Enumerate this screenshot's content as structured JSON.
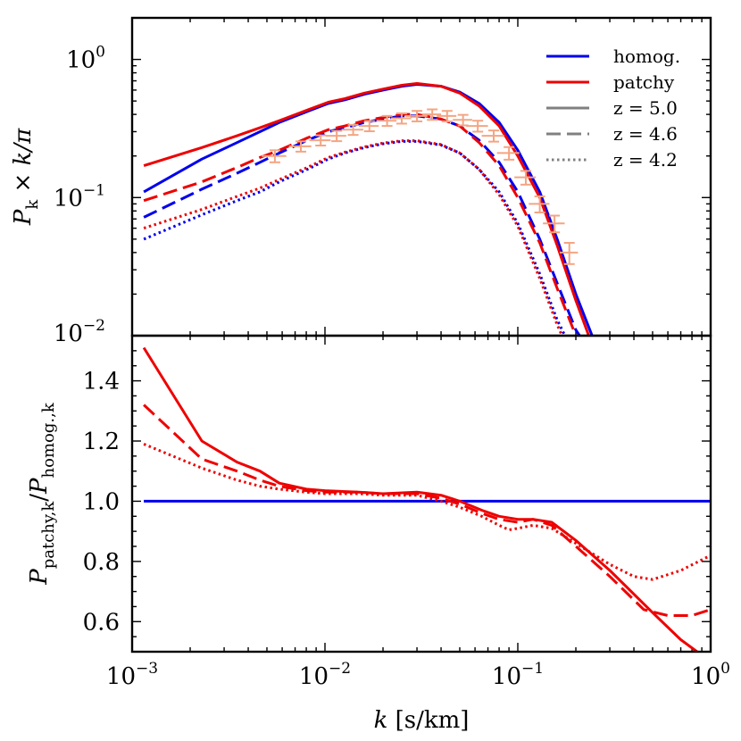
{
  "chart_data": [
    {
      "panel": "top",
      "type": "line",
      "xscale": "log",
      "yscale": "log",
      "xlim": [
        0.001,
        1
      ],
      "ylim": [
        0.01,
        2
      ],
      "yticks": [
        {
          "base": "10",
          "exp": "0",
          "value": 1
        },
        {
          "base": "10",
          "exp": "−1",
          "value": 0.1
        },
        {
          "base": "10",
          "exp": "−2",
          "value": 0.01
        }
      ],
      "ylabel": {
        "main": "P",
        "sub": "k",
        "rest": " × k/π"
      },
      "legend": {
        "position": "top-right",
        "entries": [
          {
            "label": "homog.",
            "color": "#0000ee",
            "dash": "solid"
          },
          {
            "label": "patchy",
            "color": "#ee0000",
            "dash": "solid"
          },
          {
            "label": "z = 5.0",
            "color": "#808080",
            "dash": "solid"
          },
          {
            "label": "z = 4.6",
            "color": "#808080",
            "dash": "dashed"
          },
          {
            "label": "z = 4.2",
            "color": "#808080",
            "dash": "dotted"
          }
        ]
      },
      "series": [
        {
          "name": "homog. z=5.0",
          "color": "#0000ee",
          "dash": "solid",
          "x": [
            0.00115,
            0.0023,
            0.0035,
            0.0046,
            0.0058,
            0.0081,
            0.0104,
            0.0127,
            0.016,
            0.02,
            0.025,
            0.03,
            0.04,
            0.05,
            0.063,
            0.08,
            0.1,
            0.13,
            0.16,
            0.2,
            0.25
          ],
          "y": [
            0.11,
            0.19,
            0.25,
            0.3,
            0.35,
            0.42,
            0.48,
            0.51,
            0.56,
            0.6,
            0.64,
            0.66,
            0.64,
            0.58,
            0.48,
            0.35,
            0.22,
            0.11,
            0.05,
            0.02,
            0.009
          ]
        },
        {
          "name": "patchy z=5.0",
          "color": "#ee0000",
          "dash": "solid",
          "x": [
            0.00115,
            0.0023,
            0.0035,
            0.0046,
            0.0058,
            0.0081,
            0.0104,
            0.0127,
            0.016,
            0.02,
            0.025,
            0.03,
            0.04,
            0.05,
            0.063,
            0.08,
            0.1,
            0.13,
            0.16,
            0.2,
            0.24
          ],
          "y": [
            0.17,
            0.23,
            0.28,
            0.32,
            0.36,
            0.43,
            0.49,
            0.52,
            0.57,
            0.61,
            0.65,
            0.67,
            0.64,
            0.57,
            0.46,
            0.33,
            0.2,
            0.1,
            0.045,
            0.018,
            0.009
          ]
        },
        {
          "name": "homog. z=4.6",
          "color": "#0000ee",
          "dash": "dashed",
          "x": [
            0.00115,
            0.0023,
            0.0035,
            0.0046,
            0.0058,
            0.0081,
            0.0104,
            0.0127,
            0.016,
            0.02,
            0.025,
            0.03,
            0.04,
            0.05,
            0.063,
            0.08,
            0.1,
            0.13,
            0.16,
            0.2,
            0.22
          ],
          "y": [
            0.072,
            0.115,
            0.15,
            0.18,
            0.21,
            0.26,
            0.3,
            0.32,
            0.35,
            0.37,
            0.39,
            0.39,
            0.37,
            0.33,
            0.26,
            0.18,
            0.11,
            0.05,
            0.024,
            0.011,
            0.009
          ]
        },
        {
          "name": "patchy z=4.6",
          "color": "#ee0000",
          "dash": "dashed",
          "x": [
            0.00115,
            0.0023,
            0.0035,
            0.0046,
            0.0058,
            0.0081,
            0.0104,
            0.0127,
            0.016,
            0.02,
            0.025,
            0.03,
            0.04,
            0.05,
            0.063,
            0.08,
            0.1,
            0.13,
            0.16,
            0.2,
            0.22
          ],
          "y": [
            0.095,
            0.13,
            0.165,
            0.195,
            0.22,
            0.27,
            0.31,
            0.33,
            0.36,
            0.38,
            0.4,
            0.4,
            0.37,
            0.33,
            0.25,
            0.17,
            0.1,
            0.047,
            0.022,
            0.01,
            0.008
          ]
        },
        {
          "name": "homog. z=4.2",
          "color": "#0000ee",
          "dash": "dotted",
          "x": [
            0.00115,
            0.0023,
            0.0035,
            0.0046,
            0.0058,
            0.0081,
            0.0104,
            0.0127,
            0.016,
            0.02,
            0.025,
            0.03,
            0.04,
            0.05,
            0.063,
            0.08,
            0.1,
            0.13,
            0.16,
            0.19
          ],
          "y": [
            0.05,
            0.075,
            0.095,
            0.11,
            0.13,
            0.16,
            0.19,
            0.21,
            0.23,
            0.245,
            0.255,
            0.255,
            0.24,
            0.21,
            0.16,
            0.11,
            0.065,
            0.028,
            0.013,
            0.008
          ]
        },
        {
          "name": "patchy z=4.2",
          "color": "#ee0000",
          "dash": "dotted",
          "x": [
            0.00115,
            0.0023,
            0.0035,
            0.0046,
            0.0058,
            0.0081,
            0.0104,
            0.0127,
            0.016,
            0.02,
            0.025,
            0.03,
            0.04,
            0.05,
            0.063,
            0.08,
            0.1,
            0.13,
            0.16,
            0.19
          ],
          "y": [
            0.06,
            0.082,
            0.102,
            0.117,
            0.135,
            0.165,
            0.195,
            0.213,
            0.233,
            0.248,
            0.258,
            0.258,
            0.242,
            0.21,
            0.16,
            0.105,
            0.062,
            0.026,
            0.012,
            0.007
          ]
        }
      ],
      "errorbars": {
        "name": "data points",
        "color": "#f4a582",
        "x": [
          0.0055,
          0.0075,
          0.0095,
          0.0115,
          0.014,
          0.017,
          0.021,
          0.025,
          0.03,
          0.036,
          0.043,
          0.052,
          0.062,
          0.075,
          0.09,
          0.11,
          0.13,
          0.155,
          0.185
        ],
        "y": [
          0.2,
          0.235,
          0.26,
          0.28,
          0.31,
          0.33,
          0.36,
          0.375,
          0.39,
          0.4,
          0.39,
          0.365,
          0.33,
          0.28,
          0.21,
          0.14,
          0.09,
          0.065,
          0.04
        ],
        "xerr": [
          0.0008,
          0.001,
          0.0012,
          0.0014,
          0.0018,
          0.002,
          0.0025,
          0.003,
          0.004,
          0.004,
          0.005,
          0.006,
          0.008,
          0.01,
          0.012,
          0.014,
          0.016,
          0.02,
          0.02
        ],
        "yerr": [
          0.02,
          0.02,
          0.022,
          0.024,
          0.026,
          0.028,
          0.03,
          0.032,
          0.034,
          0.035,
          0.034,
          0.032,
          0.03,
          0.026,
          0.022,
          0.016,
          0.012,
          0.009,
          0.007
        ]
      }
    },
    {
      "panel": "bottom",
      "type": "line",
      "xscale": "log",
      "yscale": "linear",
      "xlim": [
        0.001,
        1
      ],
      "ylim": [
        0.5,
        1.55
      ],
      "xlabel": "k [s/km]",
      "xticks": [
        {
          "base": "10",
          "exp": "−3",
          "value": 0.001
        },
        {
          "base": "10",
          "exp": "−2",
          "value": 0.01
        },
        {
          "base": "10",
          "exp": "−1",
          "value": 0.1
        },
        {
          "base": "10",
          "exp": "0",
          "value": 1
        }
      ],
      "yticks": [
        {
          "label": "0.6",
          "value": 0.6
        },
        {
          "label": "0.8",
          "value": 0.8
        },
        {
          "label": "1.0",
          "value": 1.0
        },
        {
          "label": "1.2",
          "value": 1.2
        },
        {
          "label": "1.4",
          "value": 1.4
        }
      ],
      "ylabel": {
        "main": "P",
        "sub": "patchy,k",
        "slash": "/",
        "main2": "P",
        "sub2": "homog.,k"
      },
      "series": [
        {
          "name": "homog. reference",
          "color": "#0000ee",
          "dash": "solid",
          "x": [
            0.00115,
            1
          ],
          "y": [
            1.0,
            1.0
          ]
        },
        {
          "name": "ratio z=5.0",
          "color": "#ee0000",
          "dash": "solid",
          "x": [
            0.00115,
            0.0023,
            0.0035,
            0.0046,
            0.0058,
            0.008,
            0.01,
            0.015,
            0.02,
            0.03,
            0.04,
            0.05,
            0.065,
            0.08,
            0.1,
            0.12,
            0.15,
            0.2,
            0.3,
            0.5,
            0.7,
            0.85
          ],
          "y": [
            1.51,
            1.2,
            1.13,
            1.1,
            1.06,
            1.04,
            1.035,
            1.03,
            1.025,
            1.03,
            1.02,
            1.0,
            0.97,
            0.95,
            0.94,
            0.94,
            0.93,
            0.87,
            0.77,
            0.63,
            0.54,
            0.5
          ]
        },
        {
          "name": "ratio z=4.6",
          "color": "#ee0000",
          "dash": "dashed",
          "x": [
            0.00115,
            0.0023,
            0.0035,
            0.0046,
            0.0058,
            0.008,
            0.01,
            0.015,
            0.02,
            0.03,
            0.04,
            0.05,
            0.065,
            0.08,
            0.1,
            0.12,
            0.15,
            0.2,
            0.3,
            0.45,
            0.6,
            0.8,
            1.0
          ],
          "y": [
            1.32,
            1.14,
            1.1,
            1.07,
            1.05,
            1.035,
            1.03,
            1.03,
            1.025,
            1.025,
            1.01,
            0.99,
            0.96,
            0.94,
            0.93,
            0.94,
            0.92,
            0.85,
            0.75,
            0.64,
            0.62,
            0.62,
            0.64
          ]
        },
        {
          "name": "ratio z=4.2",
          "color": "#ee0000",
          "dash": "dotted",
          "x": [
            0.00115,
            0.0023,
            0.0035,
            0.0046,
            0.0058,
            0.008,
            0.01,
            0.015,
            0.02,
            0.03,
            0.04,
            0.05,
            0.065,
            0.08,
            0.09,
            0.1,
            0.12,
            0.15,
            0.2,
            0.3,
            0.4,
            0.5,
            0.7,
            1.0
          ],
          "y": [
            1.19,
            1.11,
            1.07,
            1.05,
            1.04,
            1.03,
            1.025,
            1.025,
            1.02,
            1.02,
            1.0,
            0.98,
            0.95,
            0.92,
            0.905,
            0.91,
            0.92,
            0.91,
            0.86,
            0.79,
            0.75,
            0.74,
            0.77,
            0.82
          ]
        }
      ]
    }
  ]
}
